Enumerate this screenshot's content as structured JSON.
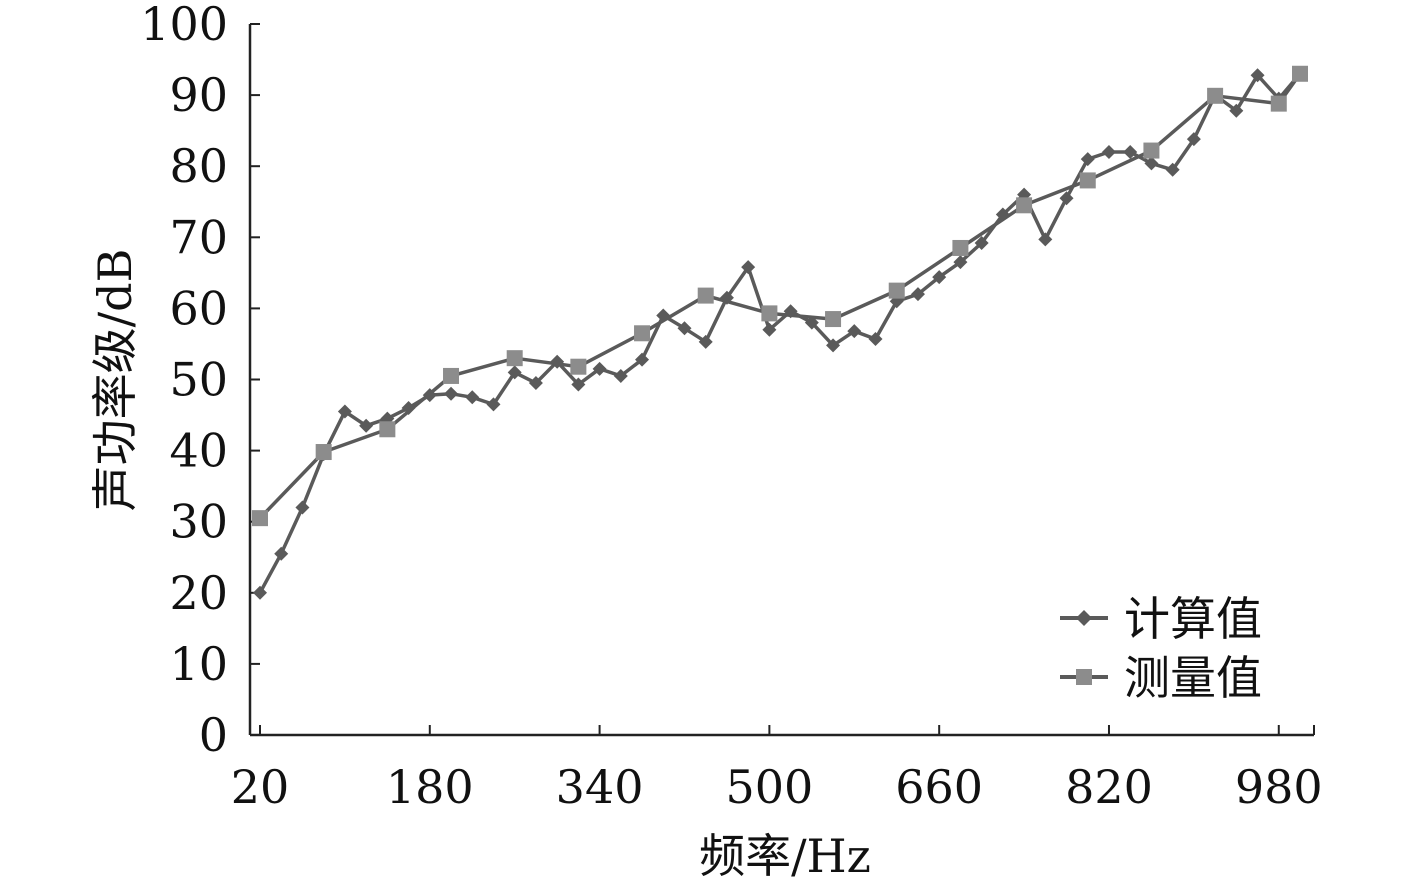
{
  "chart_data": {
    "type": "line",
    "xlabel": "频率/Hz",
    "ylabel": "声功率级/dB",
    "xlim": [
      20,
      1000
    ],
    "ylim": [
      0,
      100
    ],
    "x_ticks": [
      20,
      180,
      340,
      500,
      660,
      820,
      980
    ],
    "y_ticks": [
      0,
      10,
      20,
      30,
      40,
      50,
      60,
      70,
      80,
      90,
      100
    ],
    "grid": false,
    "legend_position": "bottom-right",
    "series": [
      {
        "name": "计算值",
        "color": "#5a5a5a",
        "marker": "diamond",
        "x": [
          20,
          40,
          60,
          80,
          100,
          120,
          140,
          160,
          180,
          200,
          220,
          240,
          260,
          280,
          300,
          320,
          340,
          360,
          380,
          400,
          420,
          440,
          460,
          480,
          500,
          520,
          540,
          560,
          580,
          600,
          620,
          640,
          660,
          680,
          700,
          720,
          740,
          760,
          780,
          800,
          820,
          840,
          860,
          880,
          900,
          920,
          940,
          960,
          980,
          1000
        ],
        "values": [
          20,
          25.5,
          32,
          39.5,
          45.5,
          43.5,
          44.5,
          46,
          47.8,
          48,
          47.5,
          46.5,
          51,
          49.5,
          52.5,
          49.3,
          51.5,
          50.5,
          52.8,
          59,
          57.2,
          55.3,
          61.5,
          65.8,
          57,
          59.6,
          58,
          54.8,
          56.8,
          55.7,
          61,
          62,
          64.4,
          66.5,
          69.2,
          73.2,
          76,
          69.7,
          75.5,
          81,
          82,
          82,
          80.4,
          79.5,
          83.8,
          90,
          87.8,
          92.8,
          89.5,
          93
        ]
      },
      {
        "name": "测量值",
        "color": "#8c8c8c",
        "marker": "square",
        "x": [
          20,
          80,
          140,
          200,
          260,
          320,
          380,
          440,
          500,
          560,
          620,
          680,
          740,
          800,
          860,
          920,
          980,
          1000
        ],
        "values": [
          30.5,
          39.8,
          43,
          50.5,
          53,
          51.8,
          56.5,
          61.8,
          59.3,
          58.5,
          62.5,
          68.5,
          74.5,
          78,
          82.2,
          89.9,
          88.8,
          93
        ]
      }
    ]
  }
}
